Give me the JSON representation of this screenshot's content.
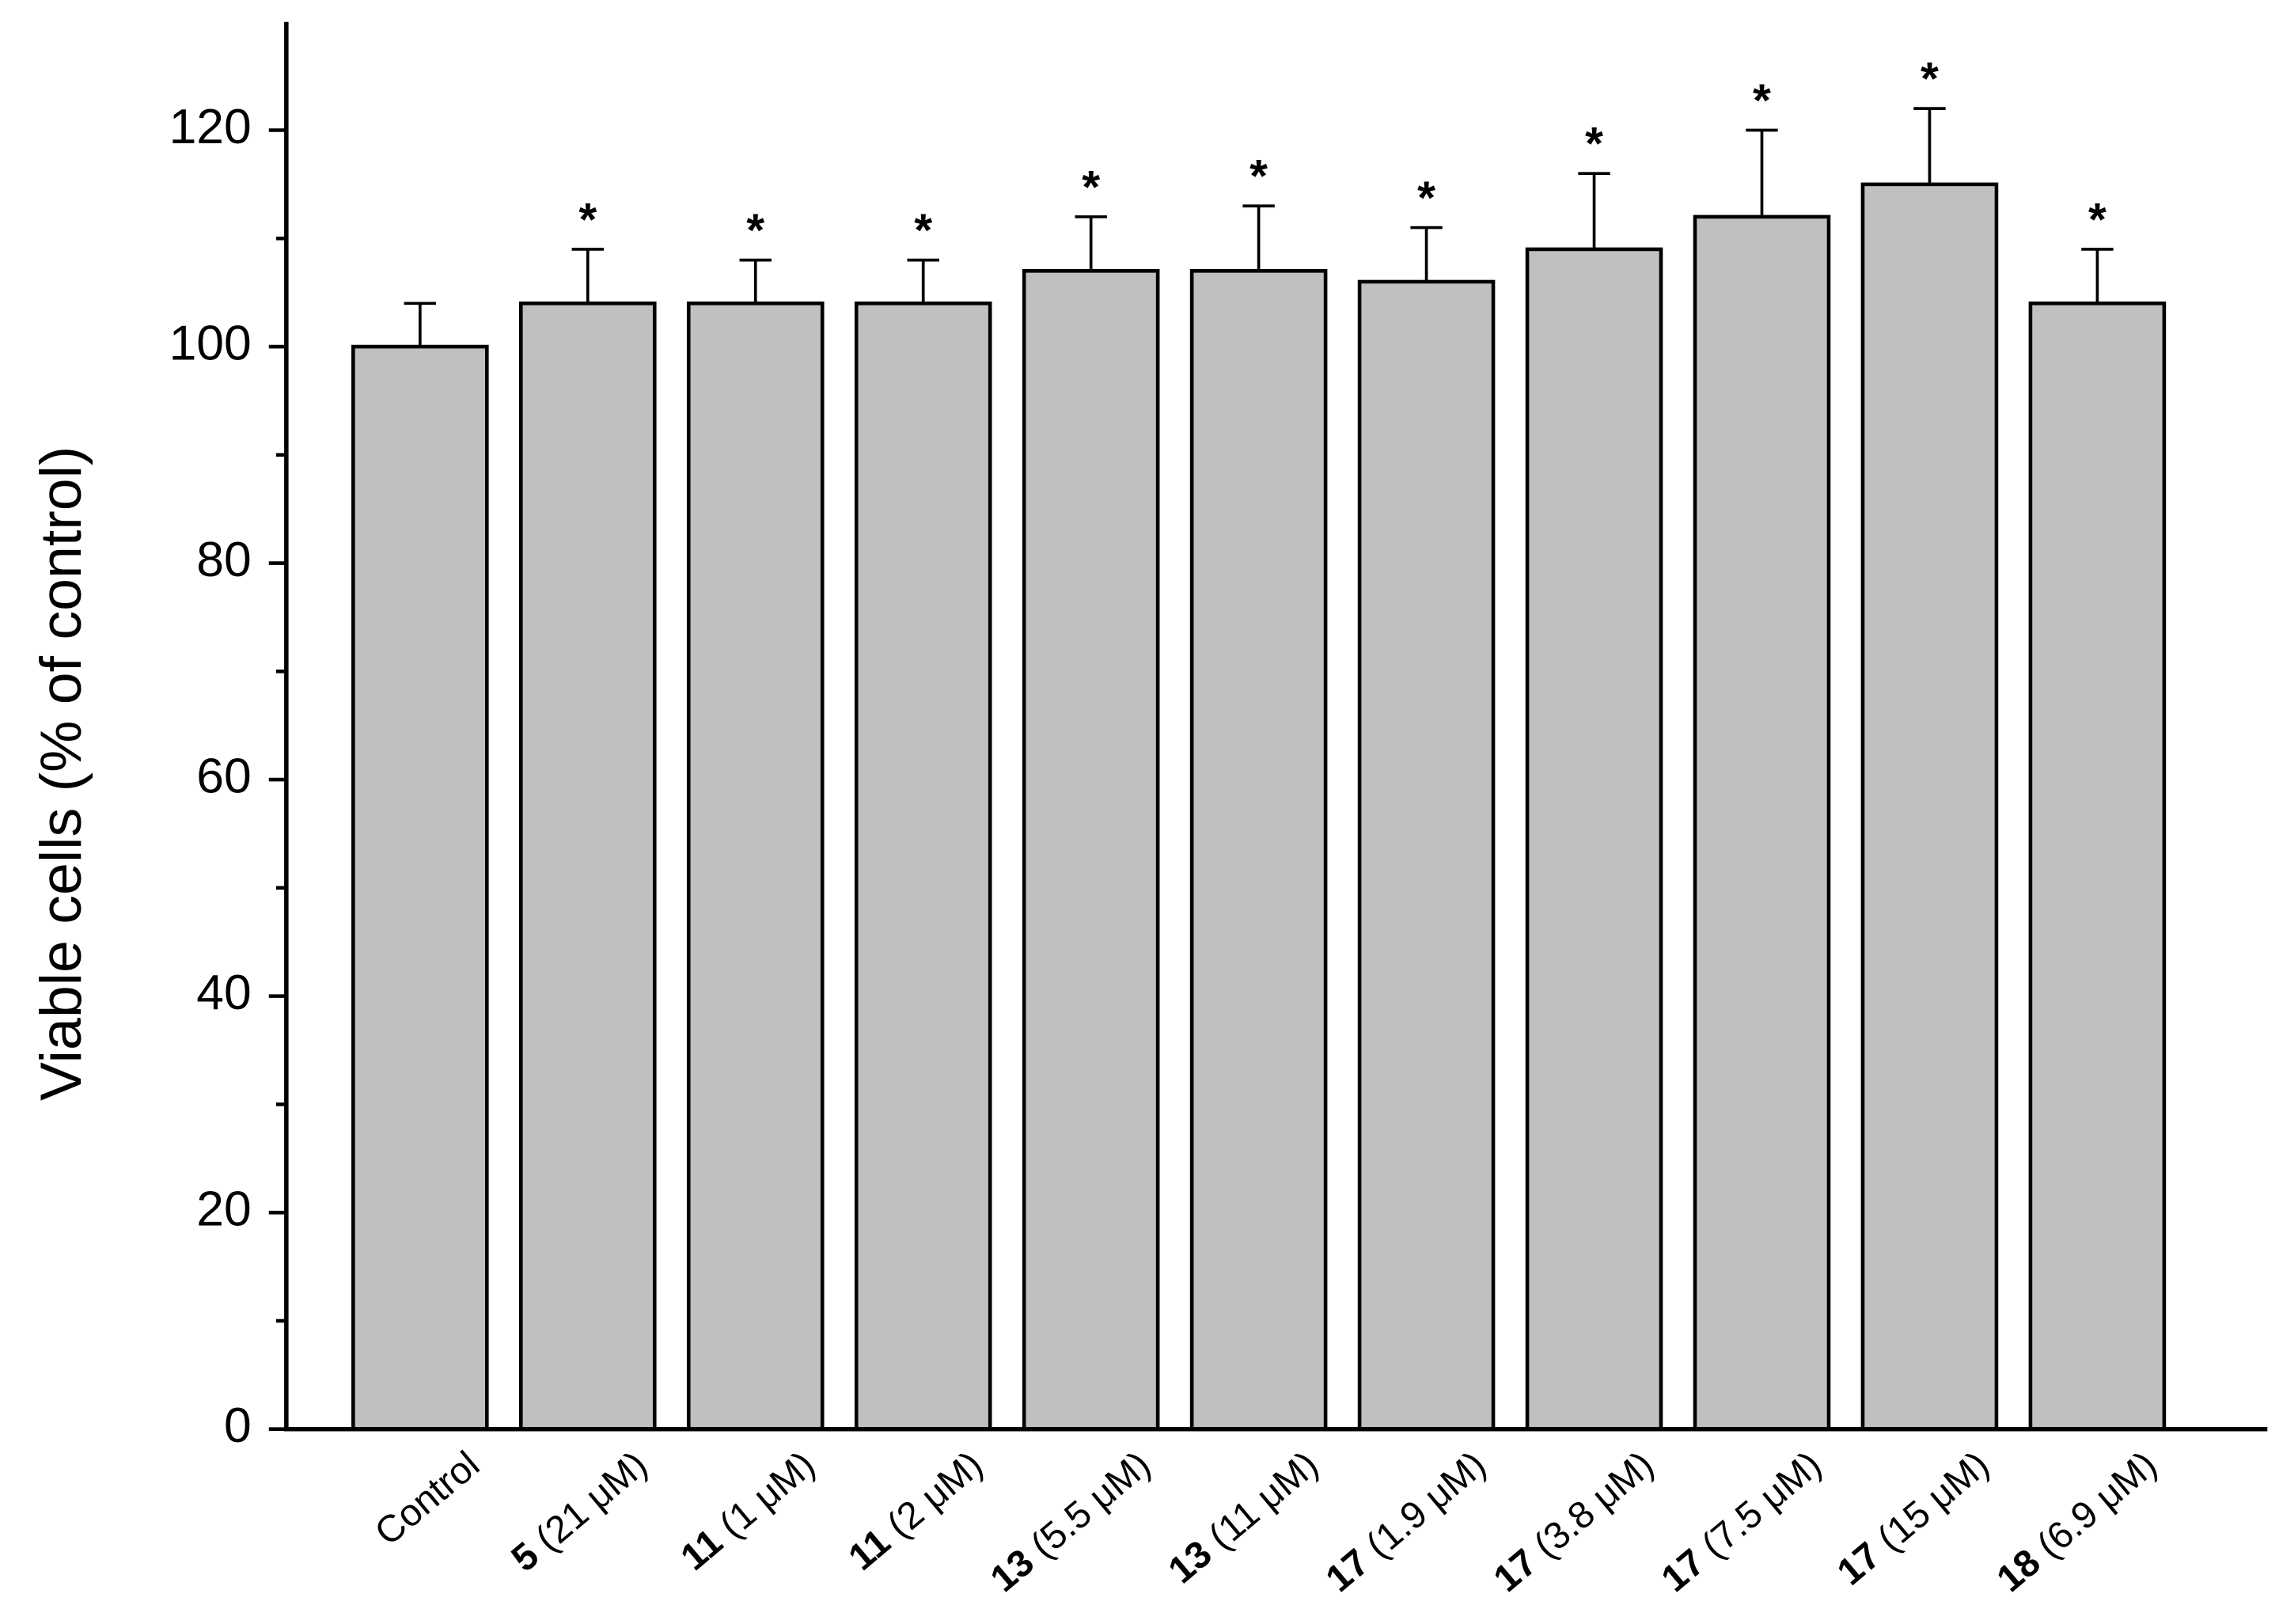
{
  "chart_data": {
    "type": "bar",
    "ylabel": "Viable cells (% of control)",
    "categories": [
      {
        "name": "Control"
      },
      {
        "compound": "5",
        "dose": "(21 μM)"
      },
      {
        "compound": "11",
        "dose": "(1 μM)"
      },
      {
        "compound": "11",
        "dose": "(2 μM)"
      },
      {
        "compound": "13",
        "dose": "(5.5 μM)"
      },
      {
        "compound": "13",
        "dose": "(11 μM)"
      },
      {
        "compound": "17",
        "dose": "(1.9 μM)"
      },
      {
        "compound": "17",
        "dose": "(3.8 μM)"
      },
      {
        "compound": "17",
        "dose": "(7.5 μM)"
      },
      {
        "compound": "17",
        "dose": "(15 μM)"
      },
      {
        "compound": "18",
        "dose": "(6.9 μM)"
      }
    ],
    "values": [
      100,
      104,
      104,
      104,
      107,
      107,
      106,
      109,
      112,
      115,
      104
    ],
    "errors": [
      4,
      5,
      4,
      4,
      5,
      6,
      5,
      7,
      8,
      7,
      5
    ],
    "significance": [
      null,
      "*",
      "*",
      "*",
      "*",
      "*",
      "*",
      "*",
      "*",
      "*",
      "*"
    ],
    "color": "#c0c0c0",
    "ylim": [
      0,
      130
    ],
    "yticks": [
      0,
      20,
      40,
      60,
      80,
      100,
      120
    ],
    "yminorticks": [
      10,
      30,
      50,
      70,
      90,
      110
    ]
  }
}
